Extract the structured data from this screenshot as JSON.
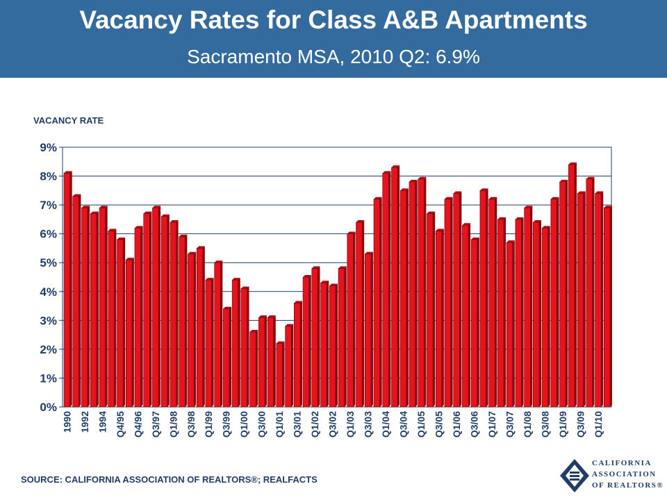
{
  "header": {
    "title": "Vacancy Rates for Class A&B Apartments",
    "subtitle": "Sacramento MSA,  2010 Q2: 6.9%"
  },
  "footer": {
    "source": "SOURCE: CALIFORNIA ASSOCIATION OF REALTORS®; REALFACTS"
  },
  "logo": {
    "line1": "CALIFORNIA",
    "line2": "ASSOCIATION",
    "line3": "OF REALTORS®"
  },
  "colors": {
    "header_bg": "#336b9e",
    "bar": "#e8121c",
    "bar_dark": "#8a0a0e",
    "grid": "#1f3d66",
    "text": "#1f3d66"
  },
  "chart_data": {
    "type": "bar",
    "ylabel": "VACANCY RATE",
    "xlabel": "",
    "ylim": [
      0,
      9
    ],
    "yticks": [
      "0%",
      "1%",
      "2%",
      "3%",
      "4%",
      "5%",
      "6%",
      "7%",
      "8%",
      "9%"
    ],
    "grid": true,
    "categories": [
      "1990",
      "",
      "1992",
      "",
      "1994",
      "",
      "Q4/95",
      "",
      "Q4/96",
      "",
      "Q3/97",
      "",
      "Q1/98",
      "",
      "Q3/98",
      "",
      "Q1/99",
      "",
      "Q3/99",
      "",
      "Q1/00",
      "",
      "Q3/00",
      "",
      "Q1/01",
      "",
      "Q3/01",
      "",
      "Q1/02",
      "",
      "Q3/02",
      "",
      "Q1/03",
      "",
      "Q3/03",
      "",
      "Q1/04",
      "",
      "Q3/04",
      "",
      "Q1/05",
      "",
      "Q3/05",
      "",
      "Q1/06",
      "",
      "Q3/06",
      "",
      "Q1/07",
      "",
      "Q3/07",
      "",
      "Q1/08",
      "",
      "Q3/08",
      "",
      "Q1/09",
      "",
      "Q3/09",
      "",
      "Q1/10",
      ""
    ],
    "values": [
      8.1,
      7.3,
      6.9,
      6.7,
      6.9,
      6.1,
      5.8,
      5.1,
      6.2,
      6.7,
      6.9,
      6.6,
      6.4,
      5.9,
      5.3,
      5.5,
      4.4,
      5.0,
      3.4,
      4.4,
      4.1,
      2.6,
      3.1,
      3.1,
      2.2,
      2.8,
      3.6,
      4.5,
      4.8,
      4.3,
      4.2,
      4.8,
      6.0,
      6.4,
      5.3,
      7.2,
      8.1,
      8.3,
      7.5,
      7.8,
      7.9,
      6.7,
      6.1,
      7.2,
      7.4,
      6.3,
      5.8,
      7.5,
      7.2,
      6.5,
      5.7,
      6.5,
      6.9,
      6.4,
      6.2,
      7.2,
      7.8,
      8.4,
      7.4,
      7.9,
      7.4,
      6.9
    ]
  }
}
